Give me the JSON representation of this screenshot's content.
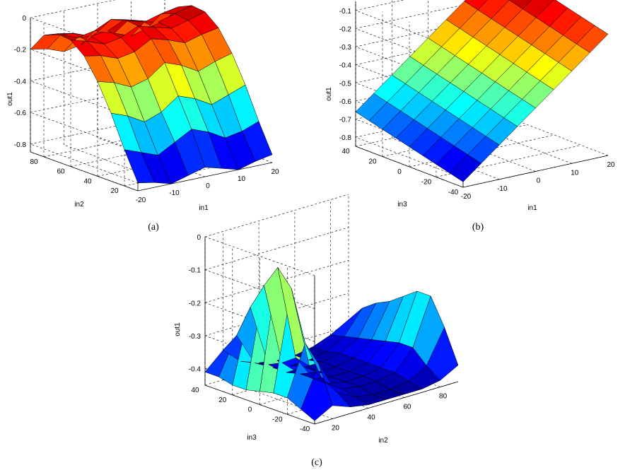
{
  "chart_data": [
    {
      "type": "surface",
      "caption": "(a)",
      "xlabel": "in1",
      "ylabel": "in2",
      "zlabel": "out1",
      "x_ticks": [
        "-20",
        "-10",
        "0",
        "10",
        "20"
      ],
      "y_ticks": [
        "20",
        "40",
        "60",
        "80"
      ],
      "z_ticks": [
        "0",
        "-0.2",
        "-0.4",
        "-0.6",
        "-0.8"
      ],
      "x_range": [
        -20,
        20
      ],
      "y_range": [
        10,
        90
      ],
      "z_range": [
        -0.85,
        0
      ],
      "grid": true,
      "colormap": "jet",
      "x": [
        -20,
        -15,
        -10,
        -5,
        0,
        5,
        10,
        15,
        20
      ],
      "y": [
        10,
        20,
        30,
        40,
        50,
        60,
        70,
        80,
        90
      ],
      "z": [
        [
          -0.8,
          -0.82,
          -0.85,
          -0.82,
          -0.79,
          -0.82,
          -0.85,
          -0.82,
          -0.8
        ],
        [
          -0.62,
          -0.66,
          -0.7,
          -0.64,
          -0.58,
          -0.62,
          -0.68,
          -0.66,
          -0.62
        ],
        [
          -0.42,
          -0.46,
          -0.52,
          -0.48,
          -0.4,
          -0.44,
          -0.5,
          -0.46,
          -0.42
        ],
        [
          -0.25,
          -0.28,
          -0.33,
          -0.3,
          -0.22,
          -0.26,
          -0.32,
          -0.28,
          -0.25
        ],
        [
          -0.12,
          -0.14,
          -0.18,
          -0.16,
          -0.1,
          -0.13,
          -0.17,
          -0.14,
          -0.12
        ],
        [
          -0.05,
          -0.08,
          -0.12,
          -0.1,
          -0.05,
          -0.08,
          -0.11,
          -0.08,
          -0.05
        ],
        [
          -0.04,
          -0.06,
          -0.1,
          -0.09,
          -0.04,
          -0.07,
          -0.1,
          -0.07,
          -0.04
        ],
        [
          -0.08,
          -0.1,
          -0.14,
          -0.12,
          -0.07,
          -0.1,
          -0.13,
          -0.1,
          -0.08
        ],
        [
          -0.2,
          -0.22,
          -0.26,
          -0.24,
          -0.18,
          -0.21,
          -0.25,
          -0.22,
          -0.2
        ]
      ]
    },
    {
      "type": "surface",
      "caption": "(b)",
      "xlabel": "in1",
      "ylabel": "in3",
      "zlabel": "out1",
      "x_ticks": [
        "-20",
        "-10",
        "0",
        "10",
        "20"
      ],
      "y_ticks": [
        "-40",
        "-20",
        "0",
        "20",
        "40"
      ],
      "z_ticks": [
        "-0.1",
        "-0.2",
        "-0.3",
        "-0.4",
        "-0.5",
        "-0.6",
        "-0.7",
        "-0.8"
      ],
      "x_range": [
        -20,
        20
      ],
      "y_range": [
        -40,
        40
      ],
      "z_range": [
        -0.85,
        -0.05
      ],
      "grid": true,
      "colormap": "jet",
      "x": [
        -20,
        -15,
        -10,
        -5,
        0,
        5,
        10,
        15,
        20
      ],
      "y": [
        -40,
        -30,
        -20,
        -10,
        0,
        10,
        20,
        30,
        40
      ],
      "z": [
        [
          -0.82,
          -0.74,
          -0.66,
          -0.58,
          -0.5,
          -0.42,
          -0.34,
          -0.26,
          -0.18
        ],
        [
          -0.8,
          -0.72,
          -0.64,
          -0.56,
          -0.48,
          -0.4,
          -0.32,
          -0.24,
          -0.16
        ],
        [
          -0.78,
          -0.7,
          -0.62,
          -0.54,
          -0.46,
          -0.38,
          -0.3,
          -0.22,
          -0.14
        ],
        [
          -0.76,
          -0.68,
          -0.6,
          -0.52,
          -0.44,
          -0.36,
          -0.28,
          -0.2,
          -0.12
        ],
        [
          -0.74,
          -0.66,
          -0.58,
          -0.5,
          -0.42,
          -0.34,
          -0.26,
          -0.18,
          -0.1
        ],
        [
          -0.72,
          -0.64,
          -0.56,
          -0.48,
          -0.4,
          -0.32,
          -0.24,
          -0.16,
          -0.08
        ],
        [
          -0.7,
          -0.62,
          -0.54,
          -0.46,
          -0.38,
          -0.3,
          -0.22,
          -0.14,
          -0.06
        ],
        [
          -0.68,
          -0.6,
          -0.52,
          -0.44,
          -0.36,
          -0.28,
          -0.2,
          -0.12,
          -0.04
        ],
        [
          -0.66,
          -0.58,
          -0.5,
          -0.42,
          -0.34,
          -0.26,
          -0.18,
          -0.1,
          -0.02
        ]
      ]
    },
    {
      "type": "surface",
      "caption": "(c)",
      "xlabel": "in2",
      "ylabel": "in3",
      "zlabel": "out1",
      "x_ticks": [
        "20",
        "40",
        "60",
        "80"
      ],
      "y_ticks": [
        "-40",
        "-20",
        "0",
        "20",
        "40"
      ],
      "z_ticks": [
        "0",
        "-0.1",
        "-0.2",
        "-0.3",
        "-0.4"
      ],
      "x_range": [
        10,
        90
      ],
      "y_range": [
        -40,
        40
      ],
      "z_range": [
        -0.45,
        0
      ],
      "grid": true,
      "colormap": "jet",
      "x": [
        10,
        20,
        30,
        40,
        50,
        60,
        70,
        80,
        90
      ],
      "y": [
        -40,
        -30,
        -20,
        -10,
        0,
        10,
        20,
        30,
        40
      ],
      "z": [
        [
          -0.44,
          -0.41,
          -0.43,
          -0.44,
          -0.44,
          -0.44,
          -0.44,
          -0.43,
          -0.4
        ],
        [
          -0.42,
          -0.3,
          -0.4,
          -0.43,
          -0.44,
          -0.44,
          -0.43,
          -0.4,
          -0.3
        ],
        [
          -0.4,
          -0.25,
          -0.38,
          -0.42,
          -0.43,
          -0.43,
          -0.42,
          -0.36,
          -0.22
        ],
        [
          -0.4,
          -0.1,
          -0.35,
          -0.42,
          -0.43,
          -0.43,
          -0.42,
          -0.36,
          -0.22
        ],
        [
          -0.41,
          -0.05,
          -0.34,
          -0.42,
          -0.43,
          -0.43,
          -0.42,
          -0.37,
          -0.25
        ],
        [
          -0.42,
          -0.12,
          -0.37,
          -0.42,
          -0.43,
          -0.43,
          -0.42,
          -0.38,
          -0.28
        ],
        [
          -0.42,
          -0.2,
          -0.39,
          -0.43,
          -0.43,
          -0.43,
          -0.42,
          -0.39,
          -0.3
        ],
        [
          -0.41,
          -0.3,
          -0.4,
          -0.43,
          -0.44,
          -0.44,
          -0.43,
          -0.4,
          -0.33
        ],
        [
          -0.41,
          -0.36,
          -0.41,
          -0.43,
          -0.44,
          -0.44,
          -0.43,
          -0.41,
          -0.38
        ]
      ]
    }
  ]
}
